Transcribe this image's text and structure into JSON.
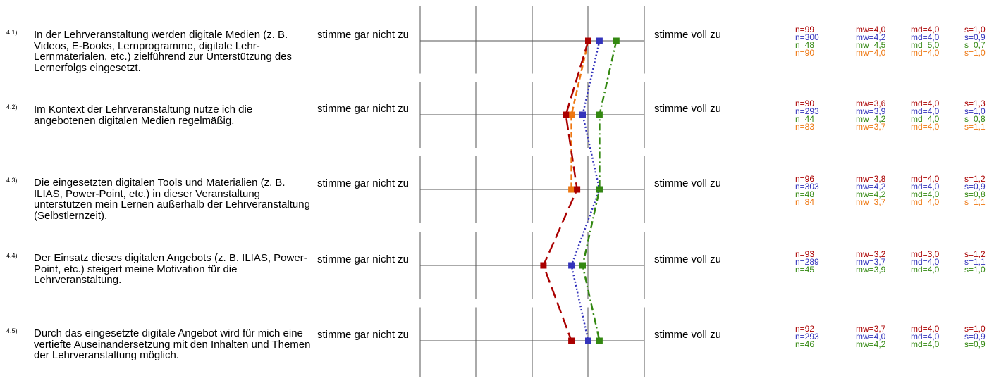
{
  "scale": {
    "min": 1,
    "max": 5,
    "left_label": "stimme gar nicht zu",
    "right_label": "stimme voll zu"
  },
  "colors": {
    "series1": "#aa0000",
    "series2": "#3333bb",
    "series3": "#338811",
    "series4": "#ee7711"
  },
  "questions": [
    {
      "num": "4.1)",
      "text": "In der Lehrveranstaltung werden digitale Medien (z. B. Videos, E-Books, Lernprogramme, digitale Lehr-Lernmaterialen, etc.) zielführend zur Unterstützung des Lernerfolgs eingesetzt.",
      "left_label": "stimme gar nicht zu",
      "right_label": "stimme voll zu",
      "stats": [
        {
          "n": "n=99",
          "mw": "mw=4,0",
          "md": "md=4,0",
          "s": "s=1,0"
        },
        {
          "n": "n=300",
          "mw": "mw=4,2",
          "md": "md=4,0",
          "s": "s=0,9"
        },
        {
          "n": "n=48",
          "mw": "mw=4,5",
          "md": "md=5,0",
          "s": "s=0,7"
        },
        {
          "n": "n=90",
          "mw": "mw=4,0",
          "md": "md=4,0",
          "s": "s=1,0"
        }
      ]
    },
    {
      "num": "4.2)",
      "text": "Im Kontext der Lehrveranstaltung nutze ich die angebotenen digitalen Medien regelmäßig.",
      "left_label": "stimme gar nicht zu",
      "right_label": "stimme voll zu",
      "stats": [
        {
          "n": "n=90",
          "mw": "mw=3,6",
          "md": "md=4,0",
          "s": "s=1,3"
        },
        {
          "n": "n=293",
          "mw": "mw=3,9",
          "md": "md=4,0",
          "s": "s=1,0"
        },
        {
          "n": "n=44",
          "mw": "mw=4,2",
          "md": "md=4,0",
          "s": "s=0,8"
        },
        {
          "n": "n=83",
          "mw": "mw=3,7",
          "md": "md=4,0",
          "s": "s=1,1"
        }
      ]
    },
    {
      "num": "4.3)",
      "text": "Die eingesetzten digitalen Tools und Materialien (z. B. ILIAS, Power-Point, etc.) in dieser Veranstaltung unterstützen mein Lernen außerhalb der Lehrveranstaltung (Selbstlernzeit).",
      "left_label": "stimme gar nicht zu",
      "right_label": "stimme voll zu",
      "stats": [
        {
          "n": "n=96",
          "mw": "mw=3,8",
          "md": "md=4,0",
          "s": "s=1,2"
        },
        {
          "n": "n=303",
          "mw": "mw=4,2",
          "md": "md=4,0",
          "s": "s=0,9"
        },
        {
          "n": "n=48",
          "mw": "mw=4,2",
          "md": "md=4,0",
          "s": "s=0,8"
        },
        {
          "n": "n=84",
          "mw": "mw=3,7",
          "md": "md=4,0",
          "s": "s=1,1"
        }
      ]
    },
    {
      "num": "4.4)",
      "text": "Der Einsatz dieses digitalen Angebots (z. B. ILIAS, Power-Point, etc.) steigert meine Motivation für die Lehrveranstaltung.",
      "left_label": "stimme gar nicht zu",
      "right_label": "stimme voll zu",
      "stats": [
        {
          "n": "n=93",
          "mw": "mw=3,2",
          "md": "md=3,0",
          "s": "s=1,2"
        },
        {
          "n": "n=289",
          "mw": "mw=3,7",
          "md": "md=4,0",
          "s": "s=1,1"
        },
        {
          "n": "n=45",
          "mw": "mw=3,9",
          "md": "md=4,0",
          "s": "s=1,0"
        }
      ]
    },
    {
      "num": "4.5)",
      "text": "Durch das eingesetzte digitale Angebot wird für mich eine vertiefte Auseinandersetzung mit den Inhalten und Themen der Lehrveranstaltung möglich.",
      "left_label": "stimme gar nicht zu",
      "right_label": "stimme voll zu",
      "stats": [
        {
          "n": "n=92",
          "mw": "mw=3,7",
          "md": "md=4,0",
          "s": "s=1,0"
        },
        {
          "n": "n=293",
          "mw": "mw=4,0",
          "md": "md=4,0",
          "s": "s=0,9"
        },
        {
          "n": "n=46",
          "mw": "mw=4,2",
          "md": "md=4,0",
          "s": "s=0,9"
        }
      ]
    }
  ],
  "chart_data": {
    "type": "line",
    "orientation": "profile",
    "categories": [
      "4.1)",
      "4.2)",
      "4.3)",
      "4.4)",
      "4.5)"
    ],
    "xlim": [
      1,
      5
    ],
    "grid": true,
    "series": [
      {
        "values": [
          4.0,
          3.6,
          3.8,
          3.2,
          3.7
        ],
        "color": "#aa0000",
        "dash": "long-dash"
      },
      {
        "values": [
          4.2,
          3.9,
          4.2,
          3.7,
          4.0
        ],
        "color": "#3333bb",
        "dash": "dotted"
      },
      {
        "values": [
          4.5,
          4.2,
          4.2,
          3.9,
          4.2
        ],
        "color": "#338811",
        "dash": "dash-dot"
      },
      {
        "values": [
          4.0,
          3.7,
          3.7,
          null,
          null
        ],
        "color": "#ee7711",
        "dash": "dashed"
      }
    ]
  }
}
